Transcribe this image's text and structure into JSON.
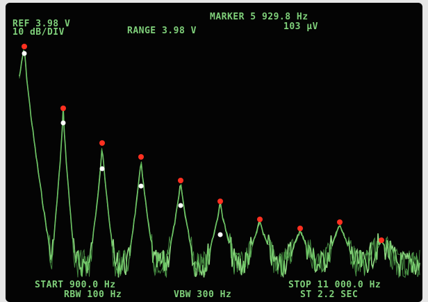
{
  "header": {
    "reference": "REF 3.98 V",
    "scale": "10 dB/DIV",
    "range": "RANGE 3.98 V",
    "marker": "MARKER 5 929.8 Hz",
    "marker_level": "103 μV"
  },
  "footer": {
    "start": "START 900.0 Hz",
    "rbw": "RBW 100 Hz",
    "vbw": "VBW 300 Hz",
    "stop": "STOP 11 000.0 Hz",
    "sweep_time": "ST 2.2 SEC"
  }
}
